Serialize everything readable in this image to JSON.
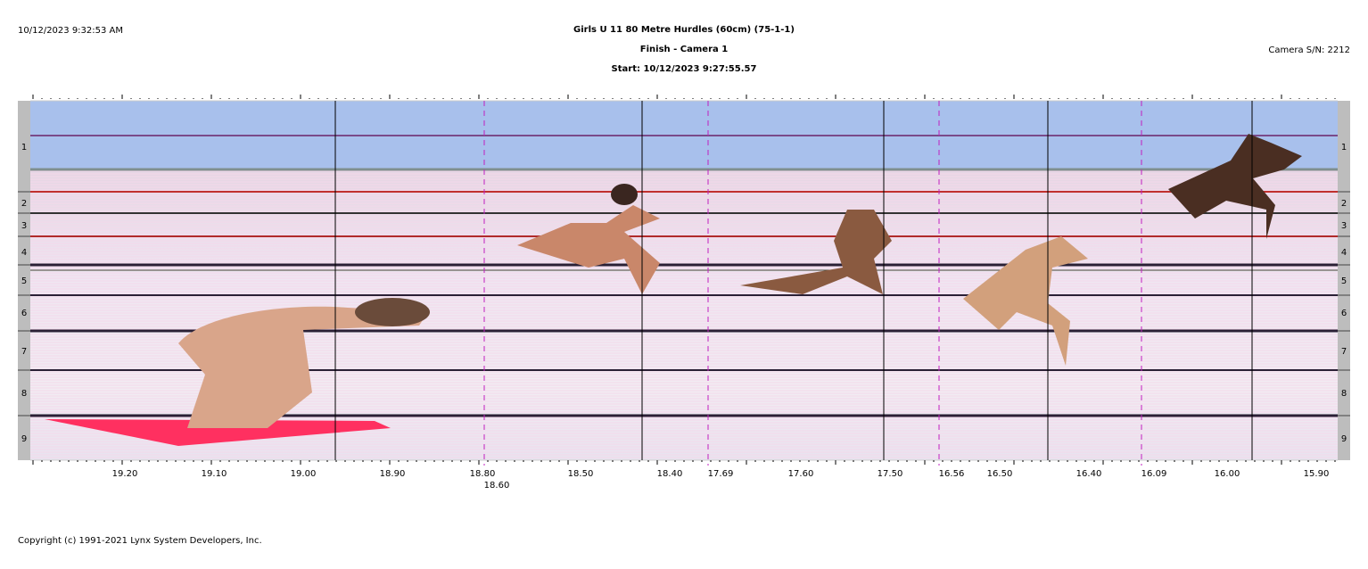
{
  "header": {
    "timestamp": "10/12/2023 9:32:53 AM",
    "title": "Girls U 11 80 Metre Hurdles (60cm) (75-1-1)",
    "subtitle": "Finish - Camera 1",
    "start": "Start: 10/12/2023 9:27:55.57",
    "camera": "Camera S/N: 2212"
  },
  "lanes": [
    "1",
    "2",
    "3",
    "4",
    "5",
    "6",
    "7",
    "8",
    "9"
  ],
  "time_scale": [
    "19.20",
    "19.10",
    "19.00",
    "18.90",
    "18.80",
    "18.60",
    "18.50",
    "18.40",
    "17.69",
    "17.60",
    "17.50",
    "16.56",
    "16.50",
    "16.40",
    "16.09",
    "16.00",
    "15.90"
  ],
  "footer": "Copyright (c) 1991-2021 Lynx System Developers, Inc."
}
